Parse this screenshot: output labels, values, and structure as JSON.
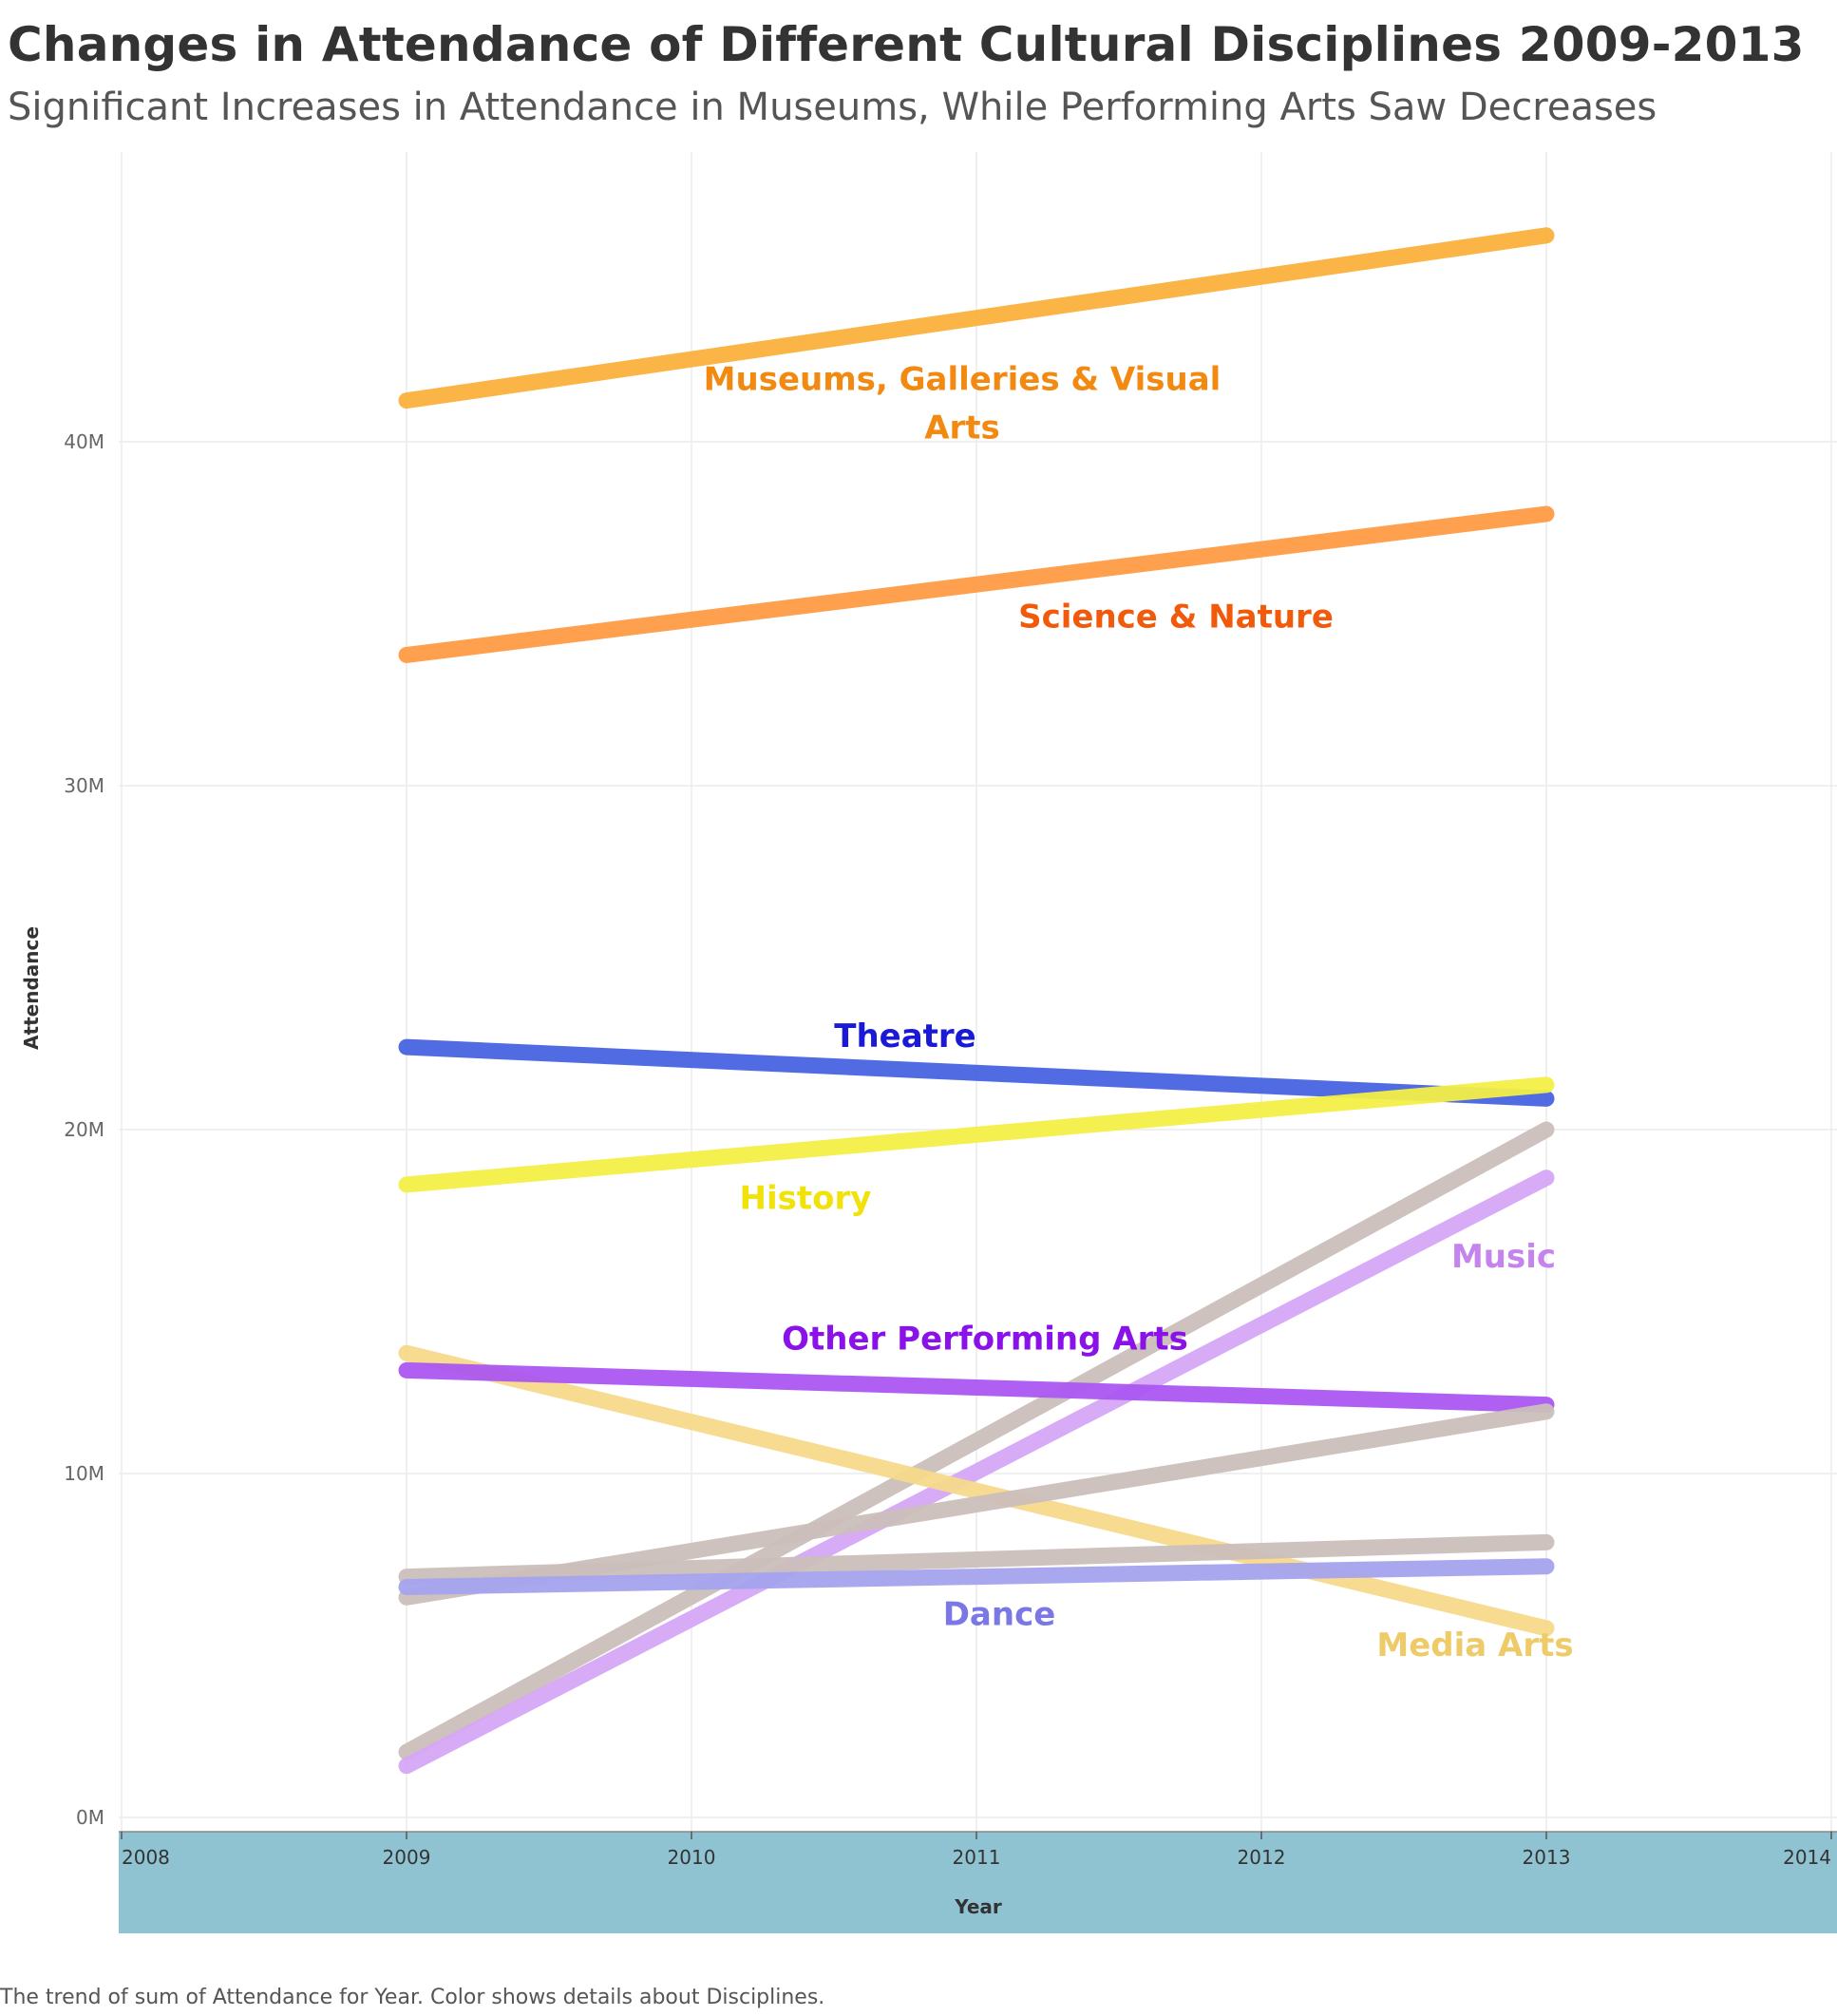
{
  "chart_data": {
    "type": "line",
    "title": "Changes in Attendance of Different Cultural Disciplines 2009-2013",
    "subtitle": "Significant Increases in Attendance in Museums, While Performing Arts Saw Decreases",
    "xlabel": "Year",
    "ylabel": "Attendance",
    "caption": "The trend of sum of Attendance for Year.  Color shows details about Disciplines.",
    "x_ticks": [
      "2008",
      "2009",
      "2010",
      "2011",
      "2012",
      "2013",
      "2014"
    ],
    "xlim": [
      2008,
      2014
    ],
    "y_ticks": [
      "0M",
      "10M",
      "20M",
      "30M",
      "40M"
    ],
    "ylim": [
      0,
      49
    ],
    "grid": true,
    "x_axis_band_color": "#8fc3d2",
    "series": [
      {
        "name": "Museums, Galleries & Visual Arts",
        "label_lines": [
          "Museums, Galleries & Visual",
          "Arts"
        ],
        "color": "#fbb13c",
        "label_color": "#f28a12",
        "x": [
          2009,
          2013
        ],
        "values": [
          41.2,
          46.0
        ],
        "label_at": [
          2010.95,
          41.5
        ]
      },
      {
        "name": "Science & Nature",
        "label_lines": [
          "Science & Nature"
        ],
        "color": "#fe9b45",
        "label_color": "#f05a0a",
        "x": [
          2009,
          2013
        ],
        "values": [
          33.8,
          37.9
        ],
        "label_at": [
          2011.7,
          34.6
        ]
      },
      {
        "name": "Theatre",
        "label_lines": [
          "Theatre"
        ],
        "color": "#4863e0",
        "label_color": "#1a1ad6",
        "x": [
          2009,
          2013
        ],
        "values": [
          22.4,
          20.9
        ],
        "label_at": [
          2010.75,
          22.4
        ]
      },
      {
        "name": "History",
        "label_lines": [
          "History"
        ],
        "color": "#f3ef47",
        "label_color": "#f0e20a",
        "x": [
          2009,
          2013
        ],
        "values": [
          18.4,
          21.3
        ],
        "label_at": [
          2010.4,
          17.7
        ]
      },
      {
        "name": "",
        "label_lines": [],
        "color": "#cbbfba",
        "x": [
          2009,
          2013
        ],
        "values": [
          1.9,
          20.0
        ]
      },
      {
        "name": "Music",
        "label_lines": [
          "Music"
        ],
        "color": "#d6a6f5",
        "label_color": "#c583ee",
        "x": [
          2009,
          2013
        ],
        "values": [
          1.5,
          18.6
        ],
        "label_at": [
          2012.85,
          16.0
        ]
      },
      {
        "name": "Media Arts",
        "label_lines": [
          "Media Arts"
        ],
        "color": "#f5d98b",
        "label_color": "#eecb68",
        "x": [
          2009,
          2013
        ],
        "values": [
          13.5,
          5.5
        ],
        "label_at": [
          2012.75,
          4.7
        ]
      },
      {
        "name": "Other Performing Arts",
        "label_lines": [
          "Other Performing Arts"
        ],
        "color": "#ab57f1",
        "label_color": "#8a12e8",
        "x": [
          2009,
          2013
        ],
        "values": [
          13.0,
          12.0
        ],
        "label_at": [
          2011.03,
          13.6
        ]
      },
      {
        "name": "",
        "label_lines": [],
        "color": "#cbbfba",
        "x": [
          2009,
          2013
        ],
        "values": [
          6.4,
          11.8
        ]
      },
      {
        "name": "",
        "label_lines": [],
        "color": "#cbbfba",
        "x": [
          2009,
          2013
        ],
        "values": [
          7.0,
          8.0
        ]
      },
      {
        "name": "Dance",
        "label_lines": [
          "Dance"
        ],
        "color": "#a4a3ee",
        "label_color": "#7b78e6",
        "x": [
          2009,
          2013
        ],
        "values": [
          6.7,
          7.3
        ],
        "label_at": [
          2011.08,
          5.6
        ]
      }
    ]
  }
}
